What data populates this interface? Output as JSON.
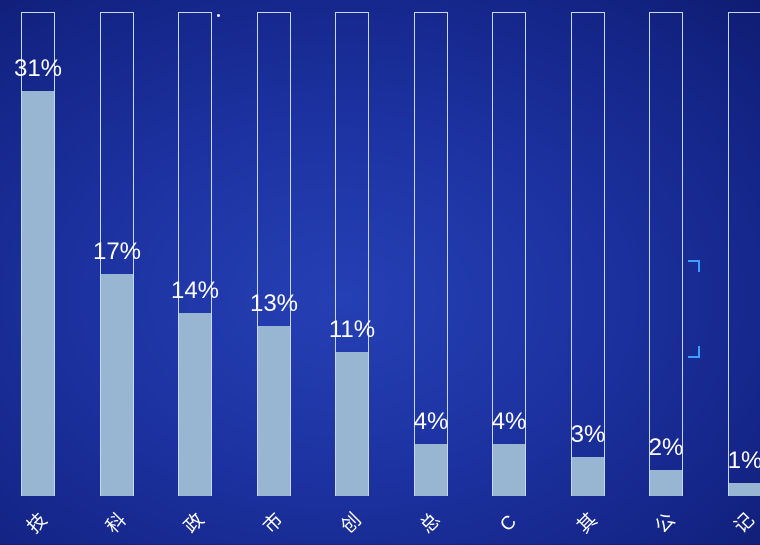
{
  "chart_data": {
    "type": "bar",
    "title": "",
    "xlabel": "",
    "ylabel": "",
    "ylim": [
      0,
      35
    ],
    "categories": [
      "技",
      "科",
      "政",
      "市",
      "创",
      "总",
      "C",
      "其",
      "公",
      "记"
    ],
    "values": [
      31,
      17,
      14,
      13,
      11,
      4,
      4,
      3,
      2,
      1
    ],
    "value_labels": [
      "31%",
      "17%",
      "14%",
      "13%",
      "11%",
      "4%",
      "4%",
      "3%",
      "2%",
      "1%"
    ],
    "grid": false,
    "legend": "none",
    "colors": {
      "bar_fill": "#98b6d2",
      "track_border": "#c8d7f5",
      "label_text": "#ffffff",
      "background": "#1d33a2",
      "accent": "#3aa0ff"
    }
  }
}
